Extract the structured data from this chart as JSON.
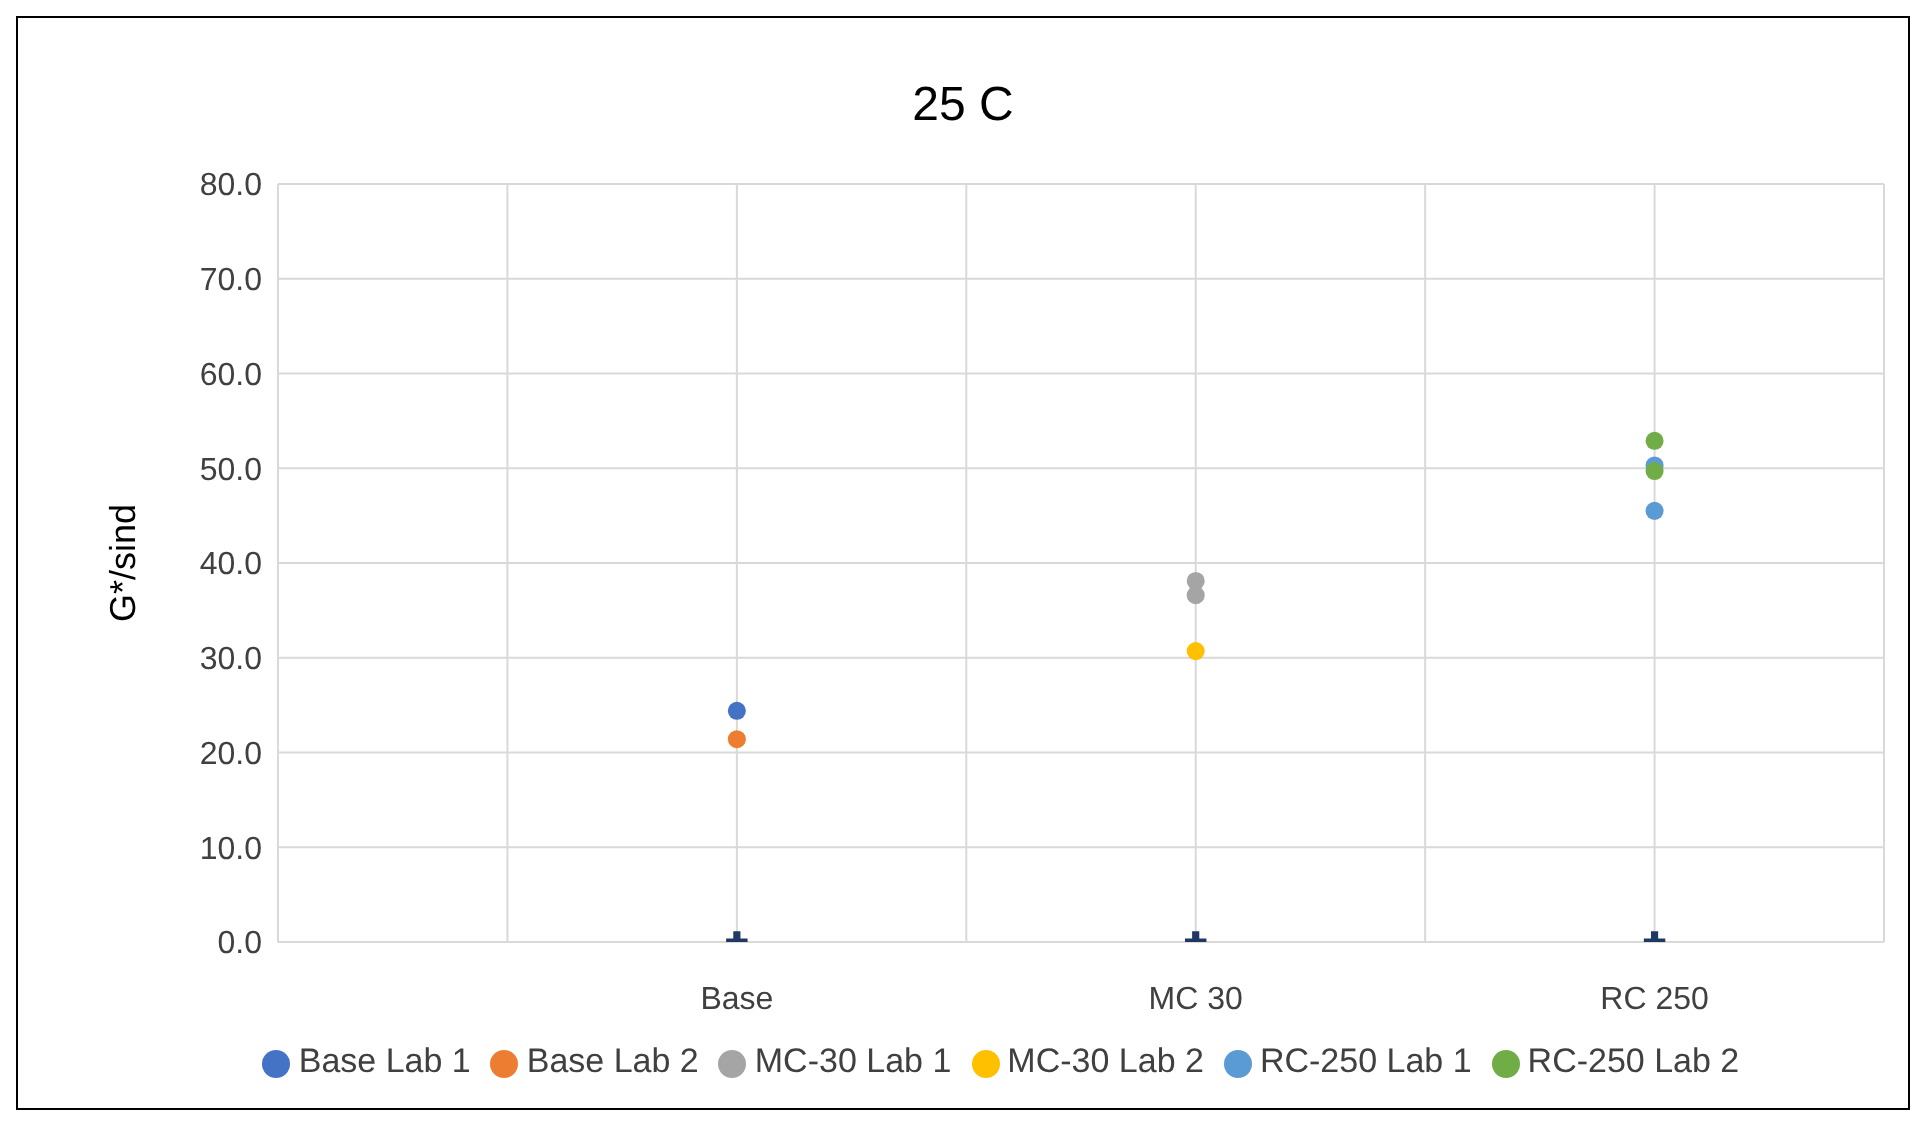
{
  "chart_data": {
    "type": "scatter",
    "title": "25 C",
    "ylabel": "G*/sind",
    "categories": [
      null,
      "Base",
      "MC 30",
      "RC 250"
    ],
    "ylim": [
      0,
      80
    ],
    "yticks": [
      {
        "value": 0,
        "label": "0.0"
      },
      {
        "value": 10,
        "label": "10.0"
      },
      {
        "value": 20,
        "label": "20.0"
      },
      {
        "value": 30,
        "label": "30.0"
      },
      {
        "value": 40,
        "label": "40.0"
      },
      {
        "value": 50,
        "label": "50.0"
      },
      {
        "value": 60,
        "label": "60.0"
      },
      {
        "value": 70,
        "label": "70.0"
      },
      {
        "value": 80,
        "label": "80.0"
      }
    ],
    "grid": true,
    "legend": "bottom",
    "marker": "circle",
    "series": [
      {
        "name": "Base Lab 1",
        "color": "#4472c4",
        "x": [
          "Base"
        ],
        "values": [
          24.4
        ]
      },
      {
        "name": "Base Lab 2",
        "color": "#ed7d31",
        "x": [
          "Base"
        ],
        "values": [
          21.4
        ]
      },
      {
        "name": "MC-30 Lab 1",
        "color": "#a5a5a5",
        "x": [
          "MC 30",
          "MC 30"
        ],
        "values": [
          38.1,
          36.6
        ]
      },
      {
        "name": "MC-30 Lab 2",
        "color": "#ffc000",
        "x": [
          "MC 30"
        ],
        "values": [
          30.7
        ]
      },
      {
        "name": "RC-250 Lab 1",
        "color": "#5b9bd5",
        "x": [
          "RC 250",
          "RC 250"
        ],
        "values": [
          50.3,
          45.5
        ]
      },
      {
        "name": "RC-250 Lab 2",
        "color": "#70ad47",
        "x": [
          "RC 250",
          "RC 250"
        ],
        "values": [
          52.9,
          49.7
        ]
      },
      {
        "color": "#203864",
        "marker": "cross",
        "x": [
          "Base",
          "MC 30",
          "RC 250"
        ],
        "values": [
          0,
          0,
          0
        ]
      }
    ]
  }
}
